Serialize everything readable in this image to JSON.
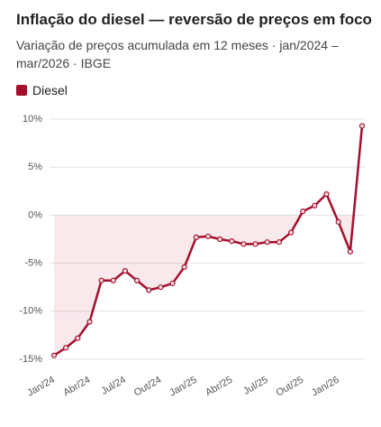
{
  "chart_data": {
    "type": "line",
    "title": "Inflação do diesel — reversão de preços em foco",
    "subtitle": "Variação de preços acumulada em 12 meses · jan/2024 – mar/2026 · IBGE",
    "categories": [
      "Jan/24",
      null,
      null,
      "Abr/24",
      null,
      null,
      "Jul/24",
      null,
      null,
      "Out/24",
      null,
      null,
      "Jan/25",
      null,
      null,
      "Abr/25",
      null,
      null,
      "Jul/25",
      null,
      null,
      "Out/25",
      null,
      null,
      "Jan/26",
      null,
      null
    ],
    "series": [
      {
        "name": "Diesel",
        "color": "#a50f2d",
        "values": [
          -14.6,
          -13.8,
          -12.8,
          -11.1,
          -6.8,
          -6.8,
          -5.8,
          -6.8,
          -7.8,
          -7.5,
          -7.1,
          -5.4,
          -2.3,
          -2.2,
          -2.5,
          -2.7,
          -3.0,
          -3.0,
          -2.8,
          -2.8,
          -1.8,
          0.4,
          1.0,
          2.2,
          -0.7,
          -3.8,
          9.3
        ]
      }
    ],
    "ylim": [
      -15,
      10
    ],
    "yticks": [
      {
        "value": -15,
        "label": "-15%"
      },
      {
        "value": -10,
        "label": "-10%"
      },
      {
        "value": -5,
        "label": "-5%"
      },
      {
        "value": 0,
        "label": "0%"
      },
      {
        "value": 5,
        "label": "5%"
      },
      {
        "value": 10,
        "label": "10%"
      }
    ],
    "grid": true
  }
}
